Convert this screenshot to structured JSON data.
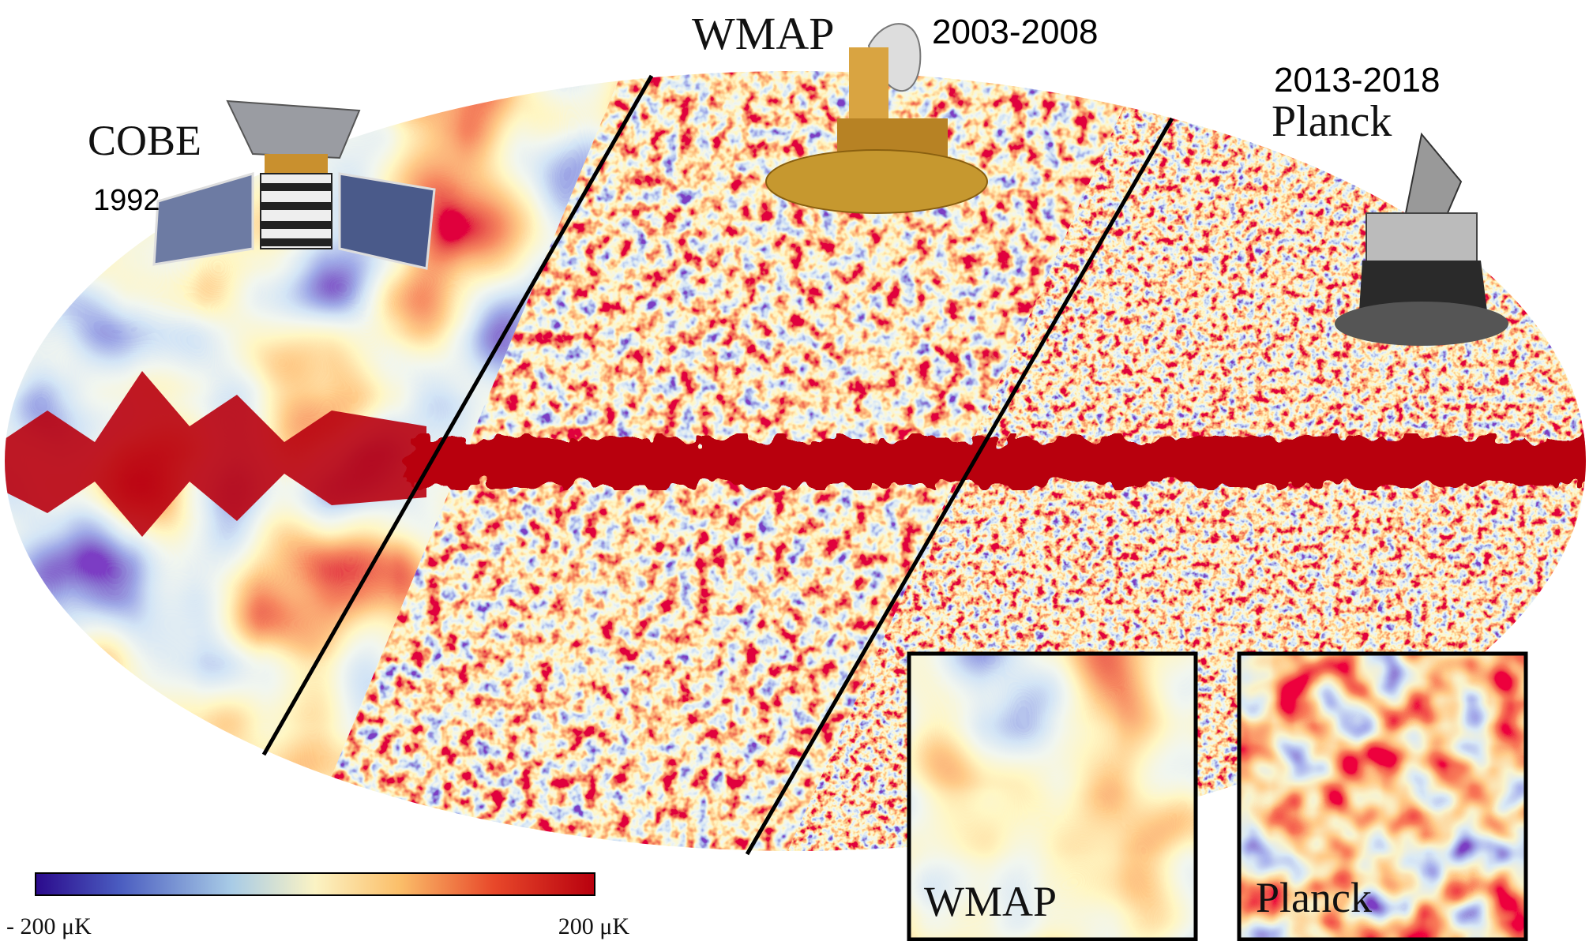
{
  "missions": [
    {
      "name": "COBE",
      "years": "1992"
    },
    {
      "name": "WMAP",
      "years": "2003-2008"
    },
    {
      "name": "Planck",
      "years": "2013-2018"
    }
  ],
  "insets": [
    {
      "label": "WMAP"
    },
    {
      "label": "Planck"
    }
  ],
  "colorbar": {
    "min_label": "- 200 μK",
    "max_label": "200 μK"
  }
}
